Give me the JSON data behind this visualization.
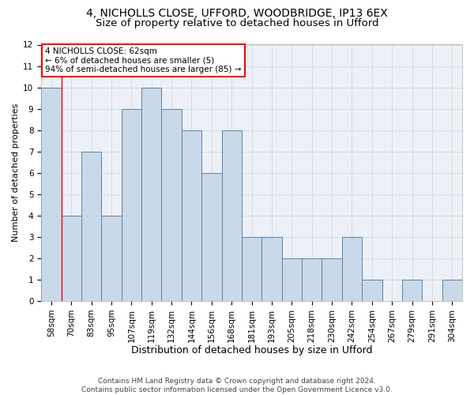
{
  "title1": "4, NICHOLLS CLOSE, UFFORD, WOODBRIDGE, IP13 6EX",
  "title2": "Size of property relative to detached houses in Ufford",
  "xlabel": "Distribution of detached houses by size in Ufford",
  "ylabel": "Number of detached properties",
  "categories": [
    "58sqm",
    "70sqm",
    "83sqm",
    "95sqm",
    "107sqm",
    "119sqm",
    "132sqm",
    "144sqm",
    "156sqm",
    "168sqm",
    "181sqm",
    "193sqm",
    "205sqm",
    "218sqm",
    "230sqm",
    "242sqm",
    "254sqm",
    "267sqm",
    "279sqm",
    "291sqm",
    "304sqm"
  ],
  "values": [
    10,
    4,
    7,
    4,
    9,
    10,
    9,
    8,
    6,
    8,
    3,
    3,
    2,
    2,
    2,
    3,
    1,
    0,
    1,
    0,
    1
  ],
  "bar_color": "#c9d9ea",
  "bar_edge_color": "#5a82a8",
  "annotation_box_text": "4 NICHOLLS CLOSE: 62sqm\n← 6% of detached houses are smaller (5)\n94% of semi-detached houses are larger (85) →",
  "annotation_box_color": "white",
  "annotation_box_edge_color": "red",
  "red_line_x": 0.5,
  "ylim_max": 12,
  "yticks": [
    0,
    1,
    2,
    3,
    4,
    5,
    6,
    7,
    8,
    9,
    10,
    11,
    12
  ],
  "grid_color": "#d0d8e0",
  "background_color": "#edf1f7",
  "footer_line1": "Contains HM Land Registry data © Crown copyright and database right 2024.",
  "footer_line2": "Contains public sector information licensed under the Open Government Licence v3.0.",
  "title1_fontsize": 10,
  "title2_fontsize": 9.5,
  "xlabel_fontsize": 9,
  "ylabel_fontsize": 8,
  "tick_fontsize": 7.5,
  "footer_fontsize": 6.5,
  "annotation_fontsize": 7.5
}
